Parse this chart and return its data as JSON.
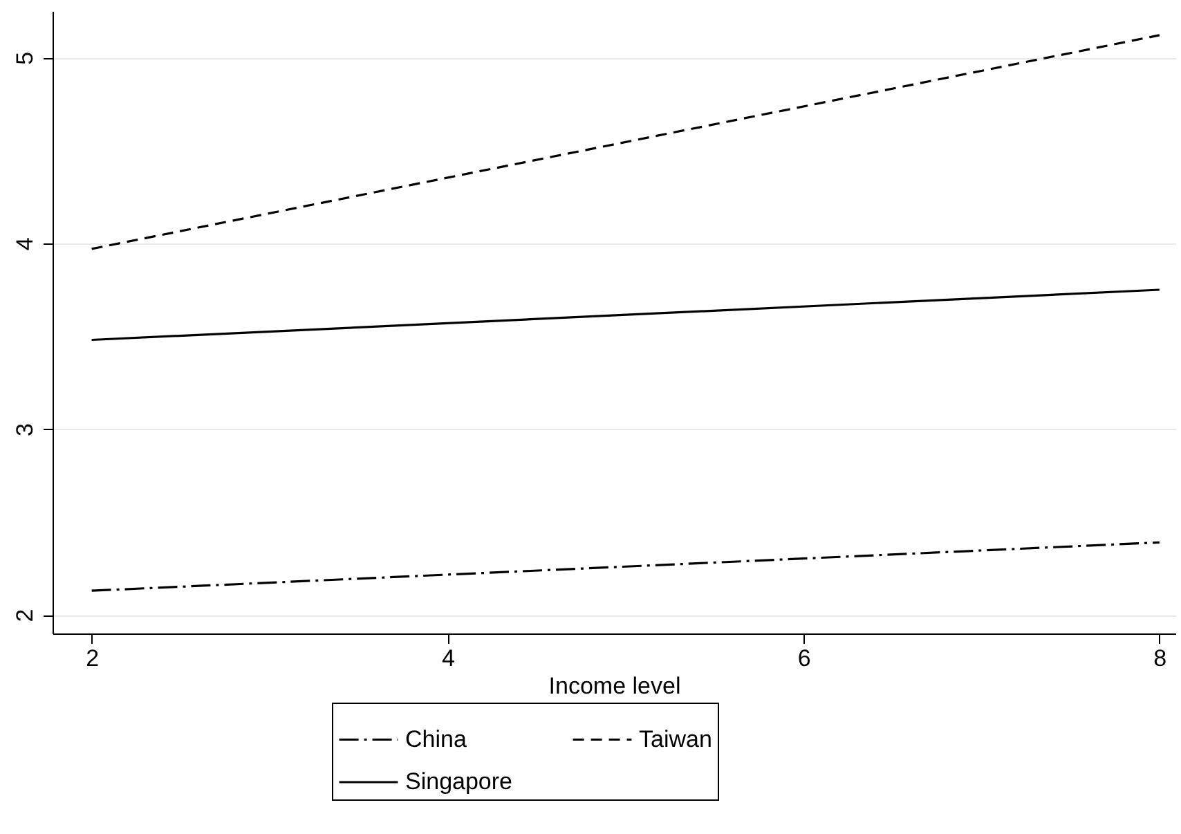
{
  "chart_data": {
    "type": "line",
    "xlabel": "Income level",
    "x": [
      2,
      8
    ],
    "series": [
      {
        "name": "China",
        "color": "#000000",
        "line_style": "dashdot",
        "values": [
          2.13,
          2.39
        ]
      },
      {
        "name": "Taiwan",
        "color": "#000000",
        "line_style": "dashed",
        "values": [
          3.97,
          5.12
        ]
      },
      {
        "name": "Singapore",
        "color": "#000000",
        "line_style": "solid",
        "values": [
          3.48,
          3.75
        ]
      }
    ],
    "xlim": [
      1.78,
      8.09
    ],
    "xticks": [
      2,
      4,
      6,
      8
    ],
    "ylim": [
      1.9,
      5.25
    ],
    "yticks": [
      2,
      3,
      4,
      5
    ],
    "grid": "y",
    "legend": "bottom",
    "marker": "none"
  }
}
